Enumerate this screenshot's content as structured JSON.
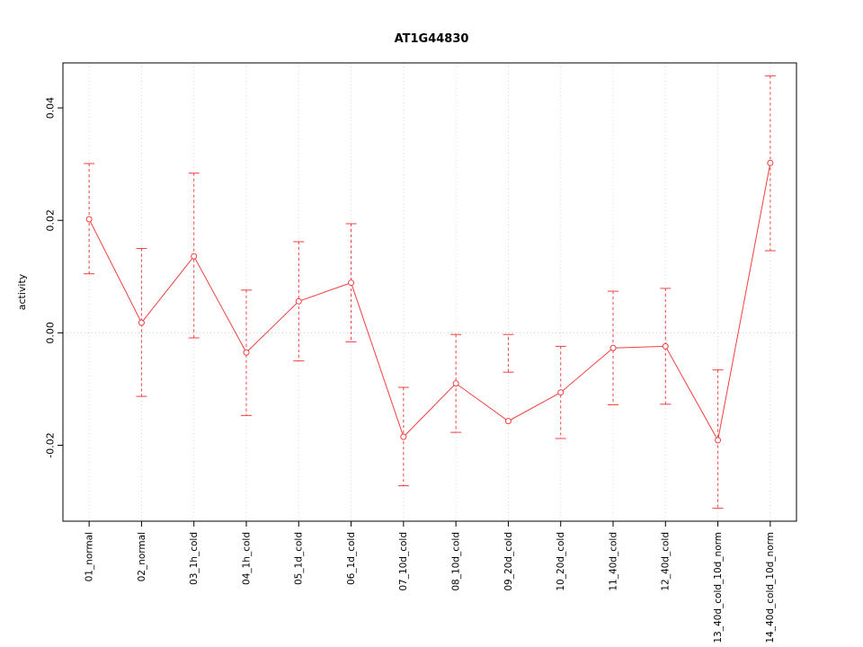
{
  "chart_data": {
    "type": "line",
    "title": "AT1G44830",
    "xlabel": "",
    "ylabel": "activity",
    "categories": [
      "01_normal",
      "02_normal",
      "03_1h_cold",
      "04_1h_cold",
      "05_1d_cold",
      "06_1d_cold",
      "07_10d_cold",
      "08_10d_cold",
      "09_20d_cold",
      "10_20d_cold",
      "11_40d_cold",
      "12_40d_cold",
      "13_40d_cold_10d_norm",
      "14_40d_cold_10d_norm"
    ],
    "series": [
      {
        "name": "activity",
        "values": [
          0.0202,
          0.0018,
          0.0136,
          -0.0035,
          0.0056,
          0.0089,
          -0.0185,
          -0.009,
          -0.0157,
          -0.0106,
          -0.0027,
          -0.0024,
          -0.0191,
          0.0302
        ],
        "error_lower": [
          0.0105,
          -0.0113,
          -0.0009,
          -0.0147,
          -0.005,
          -0.0016,
          -0.0272,
          -0.0177,
          -0.0003,
          -0.0188,
          -0.0128,
          -0.0127,
          -0.0312,
          0.0146
        ],
        "error_upper": [
          0.0301,
          0.015,
          0.0284,
          0.0076,
          0.0162,
          0.0194,
          -0.0097,
          -0.0003,
          -0.007,
          -0.0024,
          0.0074,
          0.0079,
          -0.0066,
          0.0457
        ]
      }
    ],
    "yticks": [
      -0.02,
      0.0,
      0.02,
      0.04
    ],
    "ytick_labels": [
      "-0.02",
      "0.00",
      "0.02",
      "0.04"
    ],
    "ylim": [
      -0.0335,
      0.048
    ],
    "grid": "dotted vertical at each category, dotted horizontal at zero",
    "legend_position": "none",
    "marker": "open-circle",
    "colors": {
      "series": "#f04040",
      "grid": "#d8d8d8",
      "zero_line": "#c8c8c8",
      "axis": "#000000"
    }
  }
}
